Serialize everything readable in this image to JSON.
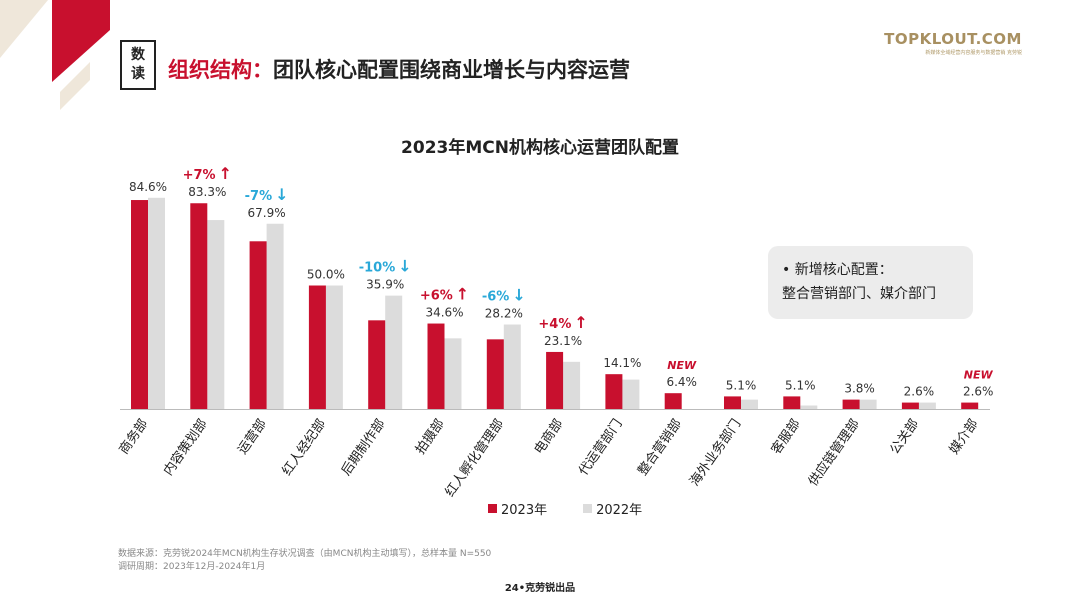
{
  "badge": {
    "line1": "数",
    "line2": "读"
  },
  "headline": {
    "prefix": "组织结构：",
    "text": "团队核心配置围绕商业增长与内容运营"
  },
  "logo": {
    "main": "TOPKLOUT.COM",
    "sub": "新媒体全域经营内容服务与数据营销  克劳锐"
  },
  "colors": {
    "accent": "#c8102e",
    "y2023": "#c8102e",
    "y2022": "#dcdcdc",
    "up": "#c8102e",
    "down": "#29a8d8",
    "gold": "#a89061"
  },
  "chart_data": {
    "type": "bar",
    "title": "2023年MCN机构核心运营团队配置",
    "categories": [
      "商务部",
      "内容策划部",
      "运营部",
      "红人经纪部",
      "后期制作部",
      "拍摄部",
      "红人孵化管理部",
      "电商部",
      "代运营部门",
      "整合营销部",
      "海外业务部门",
      "客服部",
      "供应链管理部",
      "公关部",
      "媒介部"
    ],
    "series": [
      {
        "name": "2023年",
        "values": [
          84.6,
          83.3,
          67.9,
          50.0,
          35.9,
          34.6,
          28.2,
          23.1,
          14.1,
          6.4,
          5.1,
          5.1,
          3.8,
          2.6,
          2.6
        ]
      },
      {
        "name": "2022年",
        "values": [
          85.5,
          76.5,
          75.0,
          50.0,
          45.9,
          28.6,
          34.2,
          19.1,
          11.9,
          0,
          3.8,
          1.4,
          3.8,
          2.6,
          0
        ]
      }
    ],
    "value_labels": [
      "84.6%",
      "83.3%",
      "67.9%",
      "50.0%",
      "35.9%",
      "34.6%",
      "28.2%",
      "23.1%",
      "14.1%",
      "6.4%",
      "5.1%",
      "5.1%",
      "3.8%",
      "2.6%",
      "2.6%"
    ],
    "annotations": [
      {
        "index": 1,
        "text": "+7%",
        "arrow": "↑",
        "direction": "up"
      },
      {
        "index": 2,
        "text": "-7%",
        "arrow": "↓",
        "direction": "down"
      },
      {
        "index": 4,
        "text": "-10%",
        "arrow": "↓",
        "direction": "down"
      },
      {
        "index": 5,
        "text": "+6%",
        "arrow": "↑",
        "direction": "up"
      },
      {
        "index": 6,
        "text": "-6%",
        "arrow": "↓",
        "direction": "down"
      },
      {
        "index": 7,
        "text": "+4%",
        "arrow": "↑",
        "direction": "up"
      },
      {
        "index": 9,
        "text": "NEW",
        "arrow": "",
        "direction": "new"
      },
      {
        "index": 14,
        "text": "NEW",
        "arrow": "",
        "direction": "new"
      }
    ],
    "ylim": [
      0,
      100
    ],
    "grid": false,
    "legend_position": "bottom-center"
  },
  "callout": {
    "line1": "•  新增核心配置：",
    "line2": "整合营销部门、媒介部门"
  },
  "source": {
    "line1": "数据来源：克劳锐2024年MCN机构生存状况调查（由MCN机构主动填写），总样本量 N=550",
    "line2": "调研周期：2023年12月-2024年1月"
  },
  "page_label": "24•克劳锐出品"
}
